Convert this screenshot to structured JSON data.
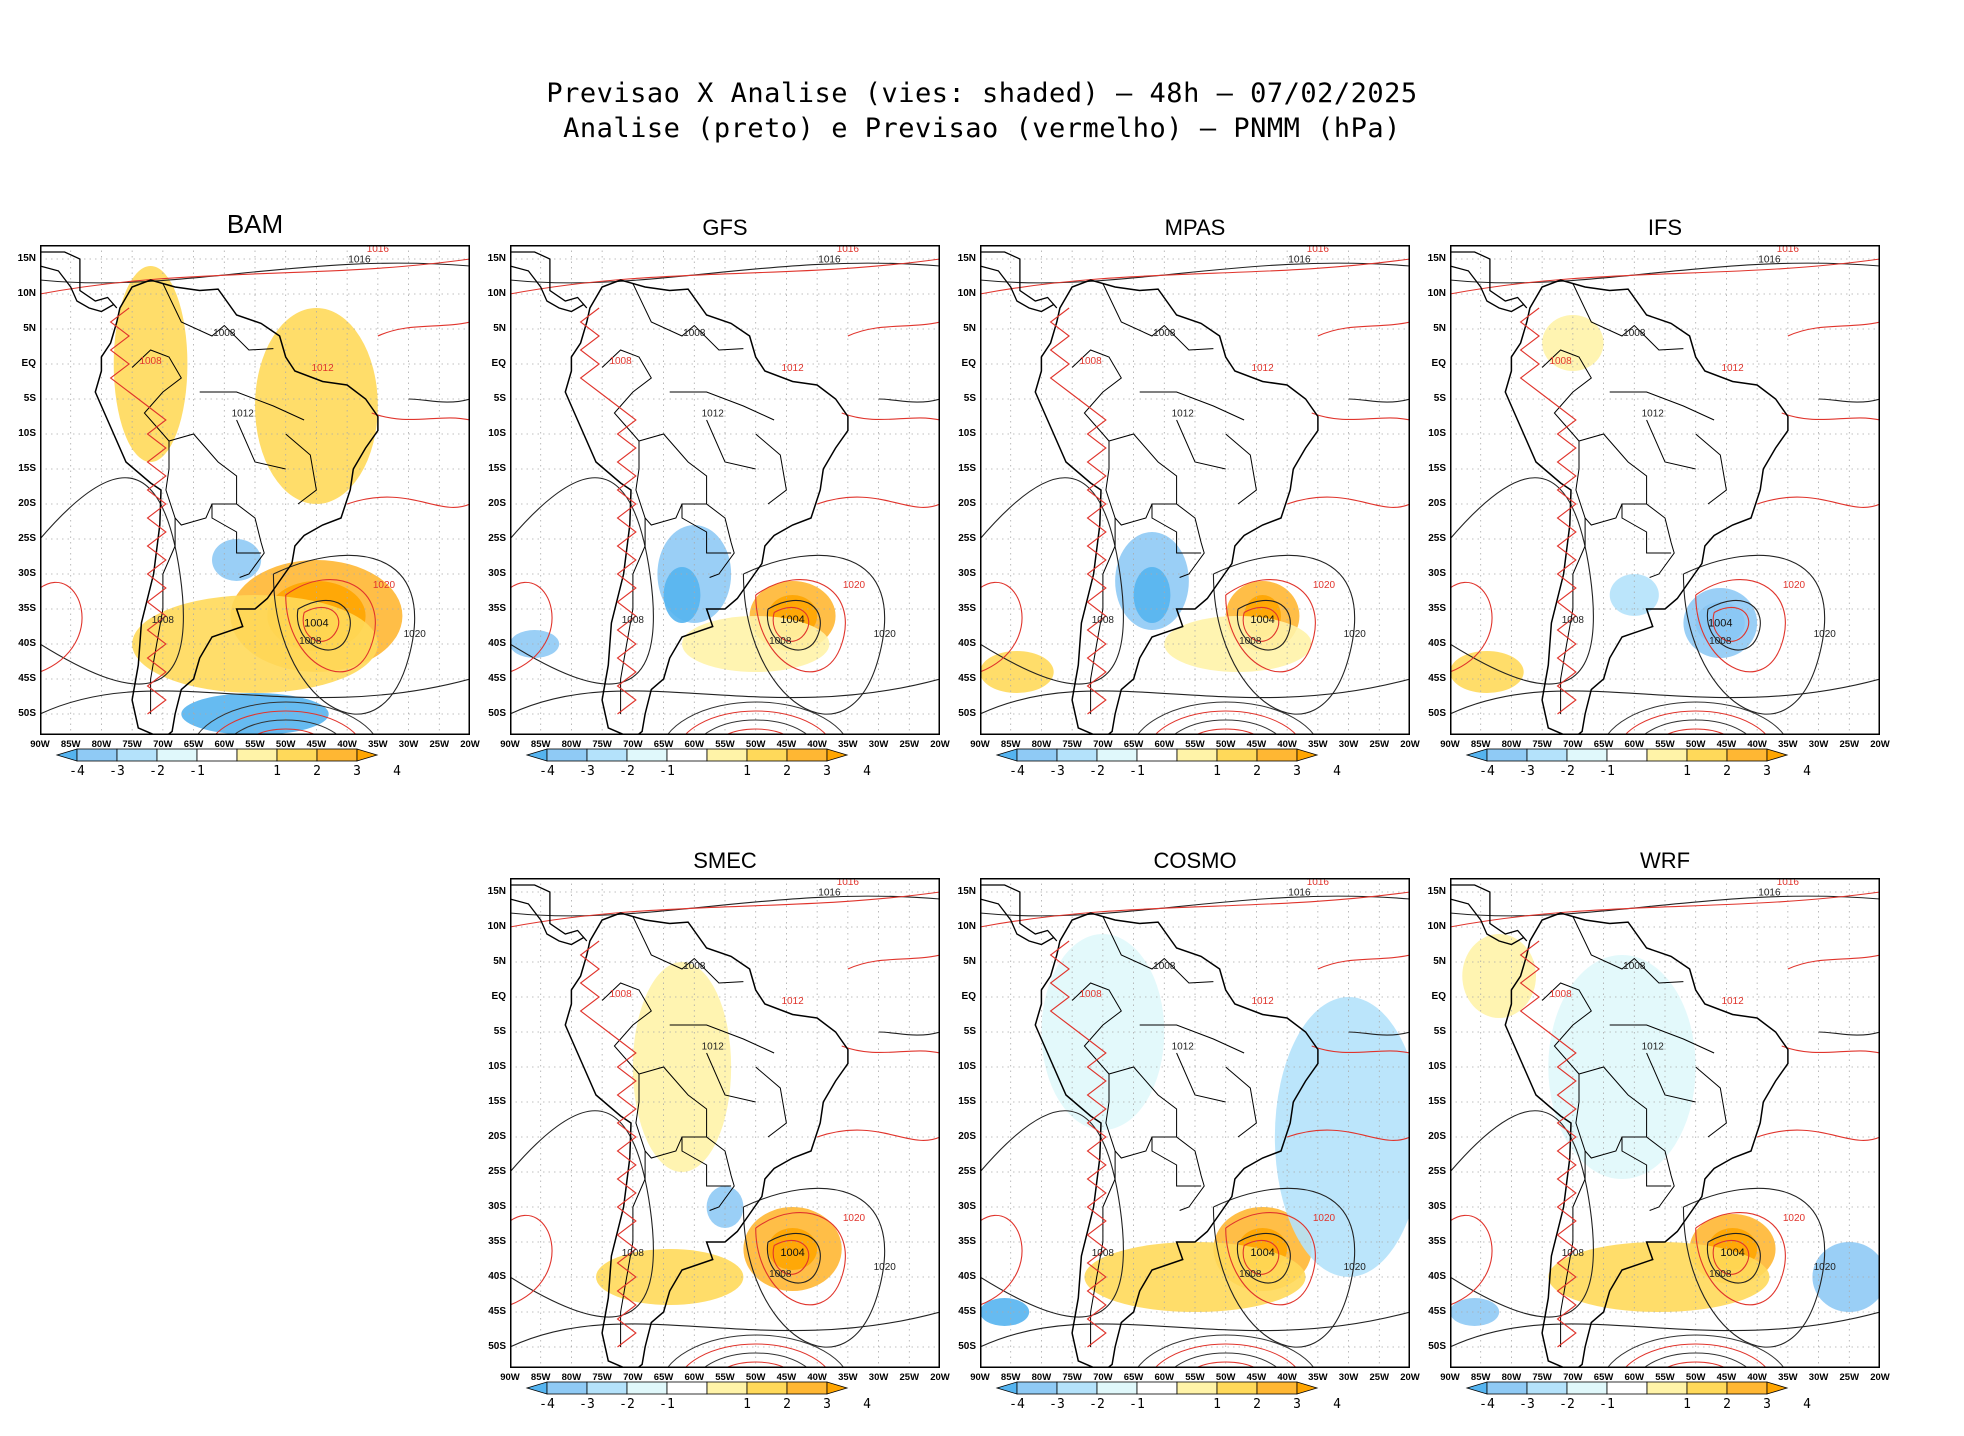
{
  "title_line1": "Previsao X Analise (vies: shaded) — 48h — 07/02/2025",
  "title_line2": "Analise (preto) e Previsao (vermelho) — PNMM (hPa)",
  "lat_labels": [
    "15N",
    "10N",
    "5N",
    "EQ",
    "5S",
    "10S",
    "15S",
    "20S",
    "25S",
    "30S",
    "35S",
    "40S",
    "45S",
    "50S"
  ],
  "lon_labels": [
    "90W",
    "85W",
    "80W",
    "75W",
    "70W",
    "65W",
    "60W",
    "55W",
    "50W",
    "45W",
    "40W",
    "35W",
    "30W",
    "25W",
    "20W"
  ],
  "colorbar": {
    "labels": [
      "-4",
      "-3",
      "-2",
      "-1",
      "1",
      "2",
      "3",
      "4"
    ],
    "colors": [
      "#55b4f0",
      "#8fcaf5",
      "#b4e2fb",
      "#e0f8fb",
      "#ffffff",
      "#fff3a8",
      "#ffd95a",
      "#ffb733",
      "#ffa500"
    ]
  },
  "panels": [
    {
      "model": "BAM",
      "slp_low": "1004",
      "iso_labels": [
        "1016",
        "1012",
        "1008",
        "1020"
      ]
    },
    {
      "model": "GFS",
      "slp_low": "1004",
      "iso_labels": [
        "1016",
        "1012",
        "1008",
        "1020"
      ]
    },
    {
      "model": "MPAS",
      "slp_low": "1004",
      "iso_labels": [
        "1016",
        "1012",
        "1008",
        "1020"
      ]
    },
    {
      "model": "IFS",
      "slp_low": "1004",
      "iso_labels": [
        "1016",
        "1012",
        "1008",
        "1020"
      ]
    },
    {
      "model": "SMEC",
      "slp_low": "1004",
      "iso_labels": [
        "1016",
        "1012",
        "1008",
        "1020"
      ]
    },
    {
      "model": "COSMO",
      "slp_low": "1004",
      "iso_labels": [
        "1016",
        "1012",
        "1008",
        "1020"
      ]
    },
    {
      "model": "WRF",
      "slp_low": "1004",
      "iso_labels": [
        "1016",
        "1012",
        "1008",
        "1020"
      ]
    }
  ]
}
